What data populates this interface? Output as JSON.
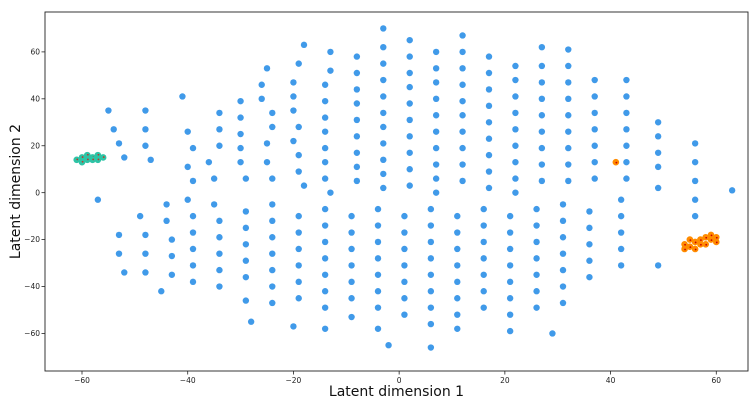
{
  "chart_data": {
    "type": "scatter",
    "title": "",
    "xlabel": "Latent dimension 1",
    "ylabel": "Latent dimension 2",
    "xlim": [
      -67,
      66
    ],
    "ylim": [
      -76,
      77
    ],
    "xticks": [
      -60,
      -40,
      -20,
      0,
      20,
      40,
      60
    ],
    "yticks": [
      -60,
      -40,
      -20,
      0,
      20,
      40,
      60
    ],
    "grid": false,
    "legend": "none",
    "colors": {
      "background_points": "#1e88e5",
      "green_cluster": "#2ec4a6",
      "green_cluster_marks": "#c0392b",
      "orange_cluster": "#ff8c00",
      "orange_cluster_marks": "#cc0000",
      "axes": "#222222"
    },
    "series": [
      {
        "values": [
          [
            -55,
            35
          ],
          [
            -54,
            27
          ],
          [
            -53,
            21
          ],
          [
            -52,
            15
          ],
          [
            -48,
            35
          ],
          [
            -48,
            27
          ],
          [
            -48,
            20
          ],
          [
            -47,
            14
          ],
          [
            -41,
            41
          ],
          [
            -40,
            26
          ],
          [
            -39,
            19
          ],
          [
            -40,
            11
          ],
          [
            -39,
            5
          ],
          [
            -34,
            34
          ],
          [
            -34,
            27
          ],
          [
            -34,
            20
          ],
          [
            -36,
            13
          ],
          [
            -35,
            6
          ],
          [
            -30,
            39
          ],
          [
            -30,
            32
          ],
          [
            -30,
            25
          ],
          [
            -30,
            19
          ],
          [
            -30,
            13
          ],
          [
            -29,
            6
          ],
          [
            -25,
            53
          ],
          [
            -26,
            46
          ],
          [
            -26,
            40
          ],
          [
            -24,
            34
          ],
          [
            -24,
            28
          ],
          [
            -25,
            21
          ],
          [
            -25,
            13
          ],
          [
            -24,
            6
          ],
          [
            -18,
            63
          ],
          [
            -19,
            55
          ],
          [
            -20,
            47
          ],
          [
            -20,
            41
          ],
          [
            -20,
            35
          ],
          [
            -19,
            28
          ],
          [
            -20,
            22
          ],
          [
            -19,
            16
          ],
          [
            -19,
            9
          ],
          [
            -18,
            3
          ],
          [
            -13,
            60
          ],
          [
            -13,
            52
          ],
          [
            -14,
            46
          ],
          [
            -14,
            39
          ],
          [
            -14,
            32
          ],
          [
            -14,
            26
          ],
          [
            -14,
            19
          ],
          [
            -14,
            13
          ],
          [
            -14,
            6
          ],
          [
            -13,
            0
          ],
          [
            -8,
            58
          ],
          [
            -8,
            51
          ],
          [
            -8,
            44
          ],
          [
            -8,
            38
          ],
          [
            -8,
            31
          ],
          [
            -8,
            24
          ],
          [
            -8,
            17
          ],
          [
            -8,
            11
          ],
          [
            -8,
            5
          ],
          [
            -3,
            70
          ],
          [
            -3,
            62
          ],
          [
            -3,
            55
          ],
          [
            -3,
            48
          ],
          [
            -3,
            41
          ],
          [
            -3,
            34
          ],
          [
            -3,
            28
          ],
          [
            -3,
            21
          ],
          [
            -3,
            14
          ],
          [
            -3,
            8
          ],
          [
            -3,
            2
          ],
          [
            2,
            65
          ],
          [
            2,
            58
          ],
          [
            2,
            51
          ],
          [
            2,
            45
          ],
          [
            2,
            38
          ],
          [
            2,
            31
          ],
          [
            2,
            24
          ],
          [
            2,
            17
          ],
          [
            2,
            10
          ],
          [
            2,
            3
          ],
          [
            7,
            60
          ],
          [
            7,
            53
          ],
          [
            7,
            47
          ],
          [
            7,
            40
          ],
          [
            7,
            33
          ],
          [
            7,
            26
          ],
          [
            7,
            19
          ],
          [
            7,
            12
          ],
          [
            7,
            6
          ],
          [
            7,
            0
          ],
          [
            12,
            67
          ],
          [
            12,
            60
          ],
          [
            12,
            53
          ],
          [
            12,
            46
          ],
          [
            12,
            39
          ],
          [
            12,
            33
          ],
          [
            12,
            26
          ],
          [
            12,
            19
          ],
          [
            12,
            12
          ],
          [
            12,
            5
          ],
          [
            17,
            58
          ],
          [
            17,
            51
          ],
          [
            17,
            44
          ],
          [
            17,
            37
          ],
          [
            17,
            30
          ],
          [
            17,
            23
          ],
          [
            17,
            16
          ],
          [
            17,
            9
          ],
          [
            17,
            2
          ],
          [
            22,
            54
          ],
          [
            22,
            48
          ],
          [
            22,
            41
          ],
          [
            22,
            34
          ],
          [
            22,
            27
          ],
          [
            22,
            20
          ],
          [
            22,
            13
          ],
          [
            22,
            6
          ],
          [
            22,
            0
          ],
          [
            27,
            62
          ],
          [
            27,
            54
          ],
          [
            27,
            47
          ],
          [
            27,
            40
          ],
          [
            27,
            33
          ],
          [
            27,
            26
          ],
          [
            27,
            19
          ],
          [
            27,
            12
          ],
          [
            27,
            5
          ],
          [
            32,
            61
          ],
          [
            32,
            54
          ],
          [
            32,
            47
          ],
          [
            32,
            40
          ],
          [
            32,
            33
          ],
          [
            32,
            26
          ],
          [
            32,
            19
          ],
          [
            32,
            12
          ],
          [
            32,
            5
          ],
          [
            37,
            48
          ],
          [
            37,
            41
          ],
          [
            37,
            34
          ],
          [
            37,
            27
          ],
          [
            37,
            20
          ],
          [
            37,
            13
          ],
          [
            37,
            6
          ],
          [
            43,
            48
          ],
          [
            43,
            41
          ],
          [
            43,
            34
          ],
          [
            43,
            27
          ],
          [
            43,
            20
          ],
          [
            43,
            13
          ],
          [
            43,
            6
          ],
          [
            49,
            30
          ],
          [
            49,
            24
          ],
          [
            49,
            17
          ],
          [
            49,
            11
          ],
          [
            49,
            2
          ],
          [
            56,
            21
          ],
          [
            56,
            13
          ],
          [
            56,
            5
          ],
          [
            56,
            -3
          ],
          [
            63,
            1
          ],
          [
            -57,
            -3
          ],
          [
            -53,
            -18
          ],
          [
            -53,
            -26
          ],
          [
            -52,
            -34
          ],
          [
            -49,
            -10
          ],
          [
            -48,
            -18
          ],
          [
            -48,
            -26
          ],
          [
            -48,
            -34
          ],
          [
            -45,
            -42
          ],
          [
            -44,
            -5
          ],
          [
            -44,
            -12
          ],
          [
            -43,
            -20
          ],
          [
            -43,
            -27
          ],
          [
            -43,
            -35
          ],
          [
            -40,
            -3
          ],
          [
            -39,
            -10
          ],
          [
            -39,
            -17
          ],
          [
            -39,
            -24
          ],
          [
            -39,
            -31
          ],
          [
            -39,
            -38
          ],
          [
            -35,
            -5
          ],
          [
            -34,
            -12
          ],
          [
            -34,
            -19
          ],
          [
            -34,
            -26
          ],
          [
            -34,
            -33
          ],
          [
            -34,
            -40
          ],
          [
            -29,
            -8
          ],
          [
            -29,
            -15
          ],
          [
            -29,
            -22
          ],
          [
            -29,
            -29
          ],
          [
            -29,
            -36
          ],
          [
            -29,
            -46
          ],
          [
            -28,
            -55
          ],
          [
            -24,
            -5
          ],
          [
            -24,
            -12
          ],
          [
            -24,
            -19
          ],
          [
            -24,
            -26
          ],
          [
            -24,
            -33
          ],
          [
            -24,
            -40
          ],
          [
            -24,
            -47
          ],
          [
            -20,
            -57
          ],
          [
            -19,
            -10
          ],
          [
            -19,
            -17
          ],
          [
            -19,
            -24
          ],
          [
            -19,
            -31
          ],
          [
            -19,
            -38
          ],
          [
            -19,
            -45
          ],
          [
            -14,
            -7
          ],
          [
            -14,
            -14
          ],
          [
            -14,
            -21
          ],
          [
            -14,
            -28
          ],
          [
            -14,
            -35
          ],
          [
            -14,
            -42
          ],
          [
            -14,
            -49
          ],
          [
            -14,
            -58
          ],
          [
            -9,
            -10
          ],
          [
            -9,
            -17
          ],
          [
            -9,
            -24
          ],
          [
            -9,
            -31
          ],
          [
            -9,
            -38
          ],
          [
            -9,
            -45
          ],
          [
            -9,
            -53
          ],
          [
            -4,
            -7
          ],
          [
            -4,
            -14
          ],
          [
            -4,
            -21
          ],
          [
            -4,
            -28
          ],
          [
            -4,
            -35
          ],
          [
            -4,
            -42
          ],
          [
            -4,
            -49
          ],
          [
            -4,
            -58
          ],
          [
            1,
            -10
          ],
          [
            1,
            -17
          ],
          [
            1,
            -24
          ],
          [
            1,
            -31
          ],
          [
            1,
            -38
          ],
          [
            1,
            -45
          ],
          [
            1,
            -52
          ],
          [
            -2,
            -65
          ],
          [
            6,
            -7
          ],
          [
            6,
            -14
          ],
          [
            6,
            -21
          ],
          [
            6,
            -28
          ],
          [
            6,
            -35
          ],
          [
            6,
            -42
          ],
          [
            6,
            -49
          ],
          [
            6,
            -56
          ],
          [
            6,
            -66
          ],
          [
            11,
            -10
          ],
          [
            11,
            -17
          ],
          [
            11,
            -24
          ],
          [
            11,
            -31
          ],
          [
            11,
            -38
          ],
          [
            11,
            -45
          ],
          [
            11,
            -52
          ],
          [
            11,
            -58
          ],
          [
            16,
            -7
          ],
          [
            16,
            -14
          ],
          [
            16,
            -21
          ],
          [
            16,
            -28
          ],
          [
            16,
            -35
          ],
          [
            16,
            -42
          ],
          [
            16,
            -49
          ],
          [
            21,
            -10
          ],
          [
            21,
            -17
          ],
          [
            21,
            -24
          ],
          [
            21,
            -31
          ],
          [
            21,
            -38
          ],
          [
            21,
            -45
          ],
          [
            21,
            -52
          ],
          [
            21,
            -59
          ],
          [
            26,
            -7
          ],
          [
            26,
            -14
          ],
          [
            26,
            -21
          ],
          [
            26,
            -28
          ],
          [
            26,
            -35
          ],
          [
            26,
            -42
          ],
          [
            26,
            -49
          ],
          [
            29,
            -60
          ],
          [
            31,
            -5
          ],
          [
            31,
            -12
          ],
          [
            31,
            -19
          ],
          [
            31,
            -26
          ],
          [
            31,
            -33
          ],
          [
            31,
            -40
          ],
          [
            31,
            -47
          ],
          [
            36,
            -8
          ],
          [
            36,
            -15
          ],
          [
            36,
            -22
          ],
          [
            36,
            -29
          ],
          [
            36,
            -36
          ],
          [
            42,
            -3
          ],
          [
            42,
            -10
          ],
          [
            42,
            -17
          ],
          [
            42,
            -24
          ],
          [
            42,
            -31
          ],
          [
            49,
            -31
          ],
          [
            56,
            -10
          ]
        ]
      },
      {
        "values": [
          [
            -61,
            14
          ],
          [
            -60,
            15
          ],
          [
            -59,
            14
          ],
          [
            -58,
            15
          ],
          [
            -57,
            16
          ],
          [
            -56,
            15
          ],
          [
            -60,
            13
          ],
          [
            -58,
            14
          ],
          [
            -57,
            14
          ],
          [
            -59,
            16
          ]
        ]
      },
      {
        "values": [
          [
            54,
            -22
          ],
          [
            55,
            -23
          ],
          [
            56,
            -21
          ],
          [
            57,
            -20
          ],
          [
            58,
            -19
          ],
          [
            59,
            -20
          ],
          [
            60,
            -19
          ],
          [
            55,
            -20
          ],
          [
            57,
            -22
          ],
          [
            58,
            -22
          ],
          [
            56,
            -24
          ],
          [
            59,
            -18
          ],
          [
            54,
            -24
          ],
          [
            60,
            -21
          ],
          [
            41,
            13
          ]
        ]
      }
    ]
  }
}
